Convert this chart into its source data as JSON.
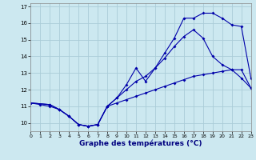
{
  "xlabel": "Graphe des températures (°C)",
  "bg_color": "#cce8f0",
  "grid_color": "#aaccd8",
  "line_color": "#0000aa",
  "xlim": [
    0,
    23
  ],
  "ylim": [
    9.5,
    17.2
  ],
  "xticks": [
    0,
    1,
    2,
    3,
    4,
    5,
    6,
    7,
    8,
    9,
    10,
    11,
    12,
    13,
    14,
    15,
    16,
    17,
    18,
    19,
    20,
    21,
    22,
    23
  ],
  "yticks": [
    10,
    11,
    12,
    13,
    14,
    15,
    16,
    17
  ],
  "line1_x": [
    0,
    1,
    2,
    3,
    4,
    5,
    6,
    7,
    8,
    9,
    10,
    11,
    12,
    13,
    14,
    15,
    16,
    17,
    18,
    19,
    20,
    21,
    22,
    23
  ],
  "line1_y": [
    11.2,
    11.1,
    11.0,
    10.8,
    10.4,
    9.9,
    9.8,
    9.9,
    11.0,
    11.5,
    12.3,
    13.3,
    12.5,
    13.3,
    14.2,
    15.1,
    16.3,
    16.3,
    16.6,
    16.6,
    16.3,
    15.9,
    15.8,
    12.7
  ],
  "line2_x": [
    0,
    2,
    3,
    4,
    5,
    6,
    7,
    8,
    9,
    10,
    11,
    12,
    13,
    14,
    15,
    16,
    17,
    18,
    19,
    20,
    21,
    22,
    23
  ],
  "line2_y": [
    11.2,
    11.1,
    10.8,
    10.4,
    9.9,
    9.8,
    9.9,
    11.0,
    11.5,
    12.0,
    12.5,
    12.8,
    13.3,
    13.9,
    14.6,
    15.2,
    15.6,
    15.1,
    14.0,
    13.5,
    13.2,
    12.7,
    12.1
  ],
  "line3_x": [
    0,
    2,
    3,
    4,
    5,
    6,
    7,
    8,
    9,
    10,
    11,
    12,
    13,
    14,
    15,
    16,
    17,
    18,
    19,
    20,
    21,
    22,
    23
  ],
  "line3_y": [
    11.2,
    11.1,
    10.8,
    10.4,
    9.9,
    9.8,
    9.9,
    11.0,
    11.2,
    11.4,
    11.6,
    11.8,
    12.0,
    12.2,
    12.4,
    12.6,
    12.8,
    12.9,
    13.0,
    13.1,
    13.2,
    13.2,
    12.1
  ]
}
